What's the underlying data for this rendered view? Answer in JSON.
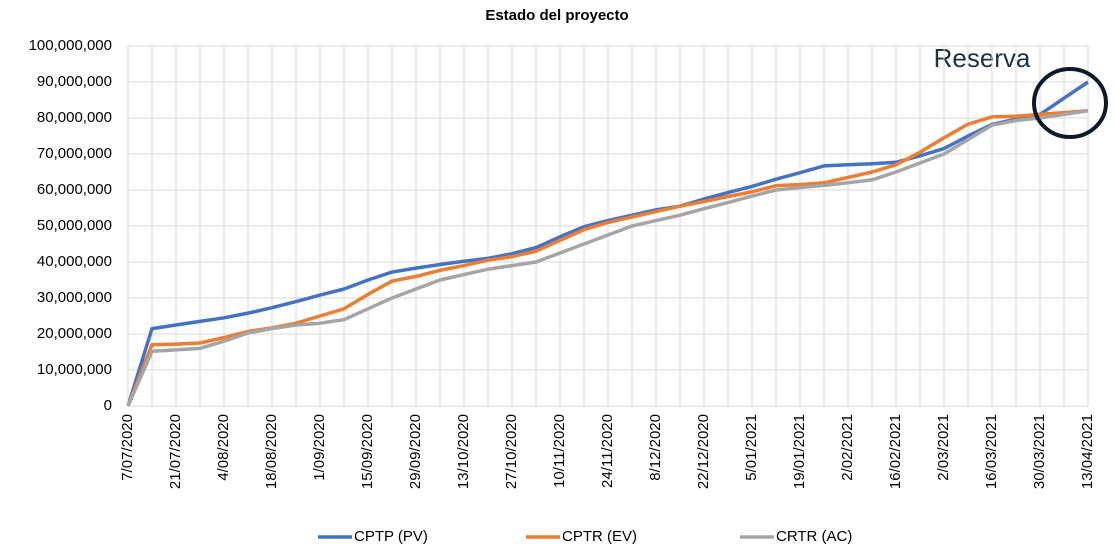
{
  "chart_data": {
    "type": "line",
    "title": "Estado del proyecto",
    "categories": [
      "7/07/2020",
      null,
      "21/07/2020",
      null,
      "4/08/2020",
      null,
      "18/08/2020",
      null,
      "1/09/2020",
      null,
      "15/09/2020",
      null,
      "29/09/2020",
      null,
      "13/10/2020",
      null,
      "27/10/2020",
      null,
      "10/11/2020",
      null,
      "24/11/2020",
      null,
      "8/12/2020",
      null,
      "22/12/2020",
      null,
      "5/01/2021",
      null,
      "19/01/2021",
      null,
      "2/02/2021",
      null,
      "16/02/2021",
      null,
      "2/03/2021",
      null,
      "16/03/2021",
      null,
      "30/03/2021",
      null,
      "13/04/2021"
    ],
    "series": [
      {
        "name": "CPTP (PV)",
        "color": "#4472c4",
        "values": [
          0,
          21500000,
          22500000,
          23500000,
          24500000,
          25800000,
          27300000,
          29000000,
          30800000,
          32500000,
          35000000,
          37200000,
          38300000,
          39300000,
          40200000,
          41000000,
          42300000,
          44000000,
          47000000,
          49800000,
          51500000,
          53000000,
          54500000,
          55500000,
          57500000,
          59300000,
          61000000,
          63000000,
          64800000,
          66700000,
          67000000,
          67300000,
          67700000,
          69500000,
          71500000,
          75000000,
          78200000,
          79700000,
          81000000,
          85500000,
          90000000
        ]
      },
      {
        "name": "CPTR (EV)",
        "color": "#ed7d31",
        "values": [
          0,
          17000000,
          17200000,
          17500000,
          19000000,
          20700000,
          21700000,
          23000000,
          25000000,
          27000000,
          31000000,
          34700000,
          36000000,
          37700000,
          39000000,
          40500000,
          41500000,
          43000000,
          46000000,
          49000000,
          51000000,
          52500000,
          54000000,
          55500000,
          56800000,
          58200000,
          59500000,
          61200000,
          61500000,
          62000000,
          63500000,
          65000000,
          67000000,
          70500000,
          74500000,
          78300000,
          80300000,
          80500000,
          81000000,
          81500000,
          82000000
        ]
      },
      {
        "name": "CRTR (AC)",
        "color": "#a5a5a5",
        "values": [
          0,
          15200000,
          15600000,
          16000000,
          18000000,
          20300000,
          21500000,
          22500000,
          23000000,
          24000000,
          27000000,
          30000000,
          32500000,
          35000000,
          36500000,
          38000000,
          39000000,
          40000000,
          42500000,
          45000000,
          47500000,
          50000000,
          51500000,
          53000000,
          54800000,
          56500000,
          58300000,
          60000000,
          60700000,
          61300000,
          62000000,
          62800000,
          65000000,
          67500000,
          70000000,
          74000000,
          78000000,
          79300000,
          80000000,
          81000000,
          82000000
        ]
      }
    ],
    "ylim": [
      0,
      100000000
    ],
    "yticks": [
      0,
      {
        "value": 10000000,
        "label": "10,000,000"
      },
      {
        "value": 20000000,
        "label": "20,000,000"
      },
      {
        "value": 30000000,
        "label": "30,000,000"
      },
      {
        "value": 40000000,
        "label": "40,000,000"
      },
      {
        "value": 50000000,
        "label": "50,000,000"
      },
      {
        "value": 60000000,
        "label": "60,000,000"
      },
      {
        "value": 70000000,
        "label": "70,000,000"
      },
      {
        "value": 80000000,
        "label": "80,000,000"
      },
      {
        "value": 90000000,
        "label": "90,000,000"
      },
      {
        "value": 100000000,
        "label": "100,000,000"
      }
    ],
    "grid": true,
    "legend": "bottom",
    "annotations": [
      "Reserva"
    ]
  }
}
